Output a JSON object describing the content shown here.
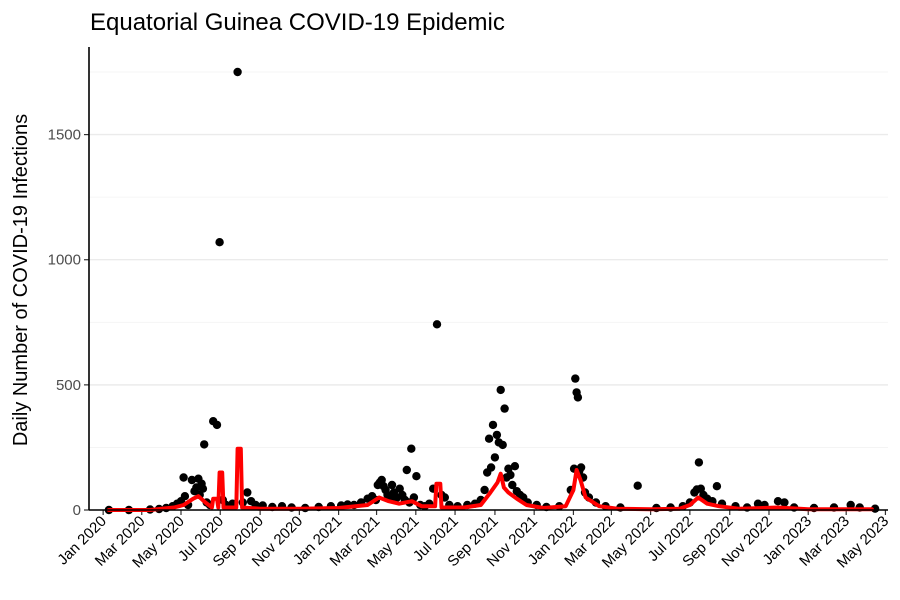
{
  "chart_data": {
    "type": "scatter",
    "title": "Equatorial Guinea COVID-19 Epidemic",
    "xlabel": "",
    "ylabel": "Daily Number of COVID-19 Infections",
    "xlim": [
      "2019-12-10",
      "2023-05-05"
    ],
    "ylim": [
      0,
      1850
    ],
    "y_ticks": [
      0,
      500,
      1000,
      1500
    ],
    "y_tick_labels": [
      "0",
      "500",
      "1000",
      "1500"
    ],
    "x_ticks": [
      "2020-01-01",
      "2020-03-01",
      "2020-05-01",
      "2020-07-01",
      "2020-09-01",
      "2020-11-01",
      "2021-01-01",
      "2021-03-01",
      "2021-05-01",
      "2021-07-01",
      "2021-09-01",
      "2021-11-01",
      "2022-01-01",
      "2022-03-01",
      "2022-05-01",
      "2022-07-01",
      "2022-09-01",
      "2022-11-01",
      "2023-01-01",
      "2023-03-01",
      "2023-05-01"
    ],
    "x_tick_labels": [
      "Jan 2020",
      "Mar 2020",
      "May 2020",
      "Jul 2020",
      "Sep 2020",
      "Nov 2020",
      "Jan 2021",
      "Mar 2021",
      "May 2021",
      "Jul 2021",
      "Sep 2021",
      "Nov 2021",
      "Jan 2022",
      "Mar 2022",
      "May 2022",
      "Jul 2022",
      "Sep 2022",
      "Nov 2022",
      "Jan 2023",
      "Mar 2023",
      "May 2023"
    ],
    "grid": true,
    "legend": "none",
    "series": [
      {
        "type": "scatter",
        "color": "#000000",
        "points": [
          [
            "2020-01-10",
            0
          ],
          [
            "2020-02-10",
            0
          ],
          [
            "2020-03-14",
            2
          ],
          [
            "2020-03-28",
            4
          ],
          [
            "2020-04-08",
            8
          ],
          [
            "2020-04-18",
            15
          ],
          [
            "2020-04-25",
            25
          ],
          [
            "2020-05-01",
            35
          ],
          [
            "2020-05-05",
            130
          ],
          [
            "2020-05-07",
            55
          ],
          [
            "2020-05-12",
            20
          ],
          [
            "2020-05-18",
            120
          ],
          [
            "2020-05-22",
            75
          ],
          [
            "2020-05-25",
            90
          ],
          [
            "2020-05-28",
            125
          ],
          [
            "2020-05-30",
            60
          ],
          [
            "2020-06-02",
            105
          ],
          [
            "2020-06-04",
            85
          ],
          [
            "2020-06-06",
            262
          ],
          [
            "2020-06-10",
            30
          ],
          [
            "2020-06-15",
            20
          ],
          [
            "2020-06-20",
            355
          ],
          [
            "2020-06-26",
            340
          ],
          [
            "2020-06-30",
            1070
          ],
          [
            "2020-07-05",
            40
          ],
          [
            "2020-07-10",
            20
          ],
          [
            "2020-07-20",
            25
          ],
          [
            "2020-07-28",
            1750
          ],
          [
            "2020-08-05",
            30
          ],
          [
            "2020-08-12",
            70
          ],
          [
            "2020-08-18",
            35
          ],
          [
            "2020-08-25",
            20
          ],
          [
            "2020-09-05",
            18
          ],
          [
            "2020-09-20",
            12
          ],
          [
            "2020-10-05",
            15
          ],
          [
            "2020-10-20",
            10
          ],
          [
            "2020-11-10",
            8
          ],
          [
            "2020-12-01",
            12
          ],
          [
            "2020-12-20",
            15
          ],
          [
            "2021-01-05",
            18
          ],
          [
            "2021-01-15",
            22
          ],
          [
            "2021-01-25",
            20
          ],
          [
            "2021-02-05",
            30
          ],
          [
            "2021-02-15",
            45
          ],
          [
            "2021-02-22",
            55
          ],
          [
            "2021-02-28",
            40
          ],
          [
            "2021-03-03",
            100
          ],
          [
            "2021-03-06",
            110
          ],
          [
            "2021-03-09",
            120
          ],
          [
            "2021-03-12",
            95
          ],
          [
            "2021-03-15",
            80
          ],
          [
            "2021-03-18",
            60
          ],
          [
            "2021-03-22",
            45
          ],
          [
            "2021-03-25",
            100
          ],
          [
            "2021-03-28",
            70
          ],
          [
            "2021-04-02",
            50
          ],
          [
            "2021-04-06",
            85
          ],
          [
            "2021-04-10",
            60
          ],
          [
            "2021-04-14",
            40
          ],
          [
            "2021-04-17",
            160
          ],
          [
            "2021-04-21",
            30
          ],
          [
            "2021-04-24",
            245
          ],
          [
            "2021-04-28",
            50
          ],
          [
            "2021-05-02",
            135
          ],
          [
            "2021-05-08",
            20
          ],
          [
            "2021-05-15",
            15
          ],
          [
            "2021-05-22",
            25
          ],
          [
            "2021-05-28",
            85
          ],
          [
            "2021-06-03",
            742
          ],
          [
            "2021-06-10",
            60
          ],
          [
            "2021-06-15",
            50
          ],
          [
            "2021-06-22",
            20
          ],
          [
            "2021-07-05",
            15
          ],
          [
            "2021-07-20",
            20
          ],
          [
            "2021-08-01",
            25
          ],
          [
            "2021-08-10",
            40
          ],
          [
            "2021-08-16",
            80
          ],
          [
            "2021-08-20",
            150
          ],
          [
            "2021-08-23",
            285
          ],
          [
            "2021-08-26",
            170
          ],
          [
            "2021-08-29",
            340
          ],
          [
            "2021-09-01",
            210
          ],
          [
            "2021-09-04",
            300
          ],
          [
            "2021-09-07",
            270
          ],
          [
            "2021-09-10",
            480
          ],
          [
            "2021-09-13",
            260
          ],
          [
            "2021-09-16",
            405
          ],
          [
            "2021-09-19",
            130
          ],
          [
            "2021-09-22",
            165
          ],
          [
            "2021-09-25",
            140
          ],
          [
            "2021-09-28",
            100
          ],
          [
            "2021-10-02",
            175
          ],
          [
            "2021-10-05",
            75
          ],
          [
            "2021-10-10",
            60
          ],
          [
            "2021-10-15",
            50
          ],
          [
            "2021-10-22",
            30
          ],
          [
            "2021-11-05",
            20
          ],
          [
            "2021-11-20",
            12
          ],
          [
            "2021-12-10",
            15
          ],
          [
            "2021-12-28",
            80
          ],
          [
            "2022-01-02",
            165
          ],
          [
            "2022-01-04",
            525
          ],
          [
            "2022-01-06",
            470
          ],
          [
            "2022-01-08",
            450
          ],
          [
            "2022-01-10",
            155
          ],
          [
            "2022-01-13",
            170
          ],
          [
            "2022-01-16",
            130
          ],
          [
            "2022-01-19",
            70
          ],
          [
            "2022-01-25",
            50
          ],
          [
            "2022-02-05",
            30
          ],
          [
            "2022-02-20",
            15
          ],
          [
            "2022-03-15",
            10
          ],
          [
            "2022-04-11",
            97
          ],
          [
            "2022-05-10",
            8
          ],
          [
            "2022-06-01",
            10
          ],
          [
            "2022-06-20",
            15
          ],
          [
            "2022-07-01",
            30
          ],
          [
            "2022-07-08",
            70
          ],
          [
            "2022-07-12",
            82
          ],
          [
            "2022-07-15",
            190
          ],
          [
            "2022-07-18",
            85
          ],
          [
            "2022-07-22",
            60
          ],
          [
            "2022-07-28",
            45
          ],
          [
            "2022-08-05",
            35
          ],
          [
            "2022-08-12",
            95
          ],
          [
            "2022-08-20",
            25
          ],
          [
            "2022-09-10",
            15
          ],
          [
            "2022-09-28",
            10
          ],
          [
            "2022-10-15",
            25
          ],
          [
            "2022-10-25",
            20
          ],
          [
            "2022-11-15",
            35
          ],
          [
            "2022-11-25",
            30
          ],
          [
            "2022-12-10",
            10
          ],
          [
            "2023-01-10",
            8
          ],
          [
            "2023-02-10",
            10
          ],
          [
            "2023-03-08",
            20
          ],
          [
            "2023-03-22",
            10
          ],
          [
            "2023-04-15",
            5
          ]
        ]
      },
      {
        "type": "line",
        "color": "#ff0000",
        "points": [
          [
            "2020-01-10",
            0
          ],
          [
            "2020-03-14",
            0
          ],
          [
            "2020-04-01",
            5
          ],
          [
            "2020-04-20",
            10
          ],
          [
            "2020-05-05",
            20
          ],
          [
            "2020-05-20",
            45
          ],
          [
            "2020-05-28",
            55
          ],
          [
            "2020-06-08",
            30
          ],
          [
            "2020-06-18",
            10
          ],
          [
            "2020-06-20",
            45
          ],
          [
            "2020-06-26",
            45
          ],
          [
            "2020-06-28",
            10
          ],
          [
            "2020-06-30",
            150
          ],
          [
            "2020-07-04",
            150
          ],
          [
            "2020-07-06",
            10
          ],
          [
            "2020-07-26",
            10
          ],
          [
            "2020-07-28",
            245
          ],
          [
            "2020-08-02",
            245
          ],
          [
            "2020-08-04",
            10
          ],
          [
            "2020-09-01",
            5
          ],
          [
            "2020-11-01",
            5
          ],
          [
            "2021-01-01",
            8
          ],
          [
            "2021-02-15",
            20
          ],
          [
            "2021-03-05",
            50
          ],
          [
            "2021-03-20",
            35
          ],
          [
            "2021-04-05",
            25
          ],
          [
            "2021-04-25",
            35
          ],
          [
            "2021-05-10",
            15
          ],
          [
            "2021-05-31",
            15
          ],
          [
            "2021-06-02",
            105
          ],
          [
            "2021-06-08",
            105
          ],
          [
            "2021-06-10",
            10
          ],
          [
            "2021-07-15",
            10
          ],
          [
            "2021-08-10",
            20
          ],
          [
            "2021-08-25",
            70
          ],
          [
            "2021-09-05",
            110
          ],
          [
            "2021-09-10",
            145
          ],
          [
            "2021-09-15",
            90
          ],
          [
            "2021-09-22",
            70
          ],
          [
            "2021-10-05",
            45
          ],
          [
            "2021-10-20",
            20
          ],
          [
            "2021-11-15",
            8
          ],
          [
            "2021-12-20",
            15
          ],
          [
            "2022-01-01",
            80
          ],
          [
            "2022-01-06",
            160
          ],
          [
            "2022-01-12",
            120
          ],
          [
            "2022-01-20",
            50
          ],
          [
            "2022-02-10",
            15
          ],
          [
            "2022-03-10",
            5
          ],
          [
            "2022-05-01",
            3
          ],
          [
            "2022-06-15",
            5
          ],
          [
            "2022-07-01",
            20
          ],
          [
            "2022-07-14",
            50
          ],
          [
            "2022-07-28",
            25
          ],
          [
            "2022-08-15",
            15
          ],
          [
            "2022-09-15",
            5
          ],
          [
            "2022-11-15",
            10
          ],
          [
            "2023-01-01",
            3
          ],
          [
            "2023-04-10",
            3
          ]
        ]
      }
    ]
  }
}
